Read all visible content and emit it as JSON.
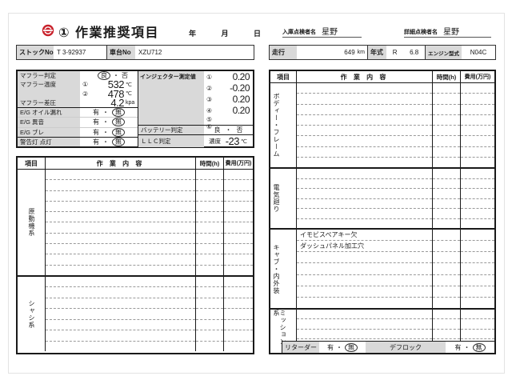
{
  "colors": {
    "label_bg": "#d9d9d9",
    "stamp_red": "#c8202a",
    "table_border": "#1a1a1a",
    "dash": "#9a9a9a"
  },
  "header": {
    "title": "① 作業推奨項目",
    "date_year": "年",
    "date_month": "月",
    "date_day": "日",
    "inspector_in_label": "入庫点検者名",
    "inspector_in_name": "星野",
    "inspector_detail_label": "詳細点検者名",
    "inspector_detail_name": "星野"
  },
  "info": {
    "stock_label": "ストックNo",
    "stock_value": "T 3-92937",
    "chassis_label": "車台No",
    "chassis_value": "XZU712",
    "mileage_label": "走行",
    "mileage_value": "649",
    "mileage_unit": "km",
    "year_label": "年式",
    "year_era": "R",
    "year_value": "6.8",
    "engine_label": "エンジン型式",
    "engine_value": "N04C"
  },
  "check": {
    "muffler_judge_label": "マフラー判定",
    "good": "良",
    "bad": "否",
    "sep": "・",
    "temp_label": "マフラー温度",
    "temp1_mark": "①",
    "temp1_value": "532",
    "temp1_unit": "℃",
    "temp2_mark": "②",
    "temp2_value": "478",
    "temp2_unit": "℃",
    "diff_label": "マフラー差圧",
    "diff_value": "4.2",
    "diff_unit": "kpa",
    "eg_oil": "E/G オイル漏れ",
    "eg_noise": "E/G 異音",
    "eg_shake": "E/G ブレ",
    "warning": "警告灯 点灯",
    "has": "有",
    "none": "無",
    "injector_label": "インジェクター測定値",
    "inj": [
      {
        "mark": "①",
        "value": "0.20"
      },
      {
        "mark": "②",
        "value": "-0.20"
      },
      {
        "mark": "③",
        "value": "0.20"
      },
      {
        "mark": "④",
        "value": "0.20"
      },
      {
        "mark": "⑤",
        "value": ""
      },
      {
        "mark": "⑥",
        "value": ""
      }
    ],
    "battery_label": "バッテリー判定",
    "llc_label": "ＬＬＣ判定",
    "llc_sub": "濃度",
    "llc_value": "-23",
    "llc_unit": "℃"
  },
  "work": {
    "headers": {
      "item": "項目",
      "work": "作 業 内 容",
      "time": "時間(h)",
      "cost": "費用(万円)"
    },
    "left_sections": [
      {
        "label": "原動機系",
        "entries": []
      },
      {
        "label": "シャシ系",
        "entries": []
      }
    ],
    "right_sections": [
      {
        "label": "ボディー・フレーム",
        "entries": []
      },
      {
        "label": "電気廻り",
        "entries": []
      },
      {
        "label": "キャブ・内外装",
        "entries": [
          "イモビスペアキー欠",
          "ダッシュパネル加工穴"
        ]
      },
      {
        "label": "ミッション系",
        "entries": []
      }
    ]
  },
  "footer": {
    "retarder_label": "リターダー",
    "deflock_label": "デフロック",
    "has": "有",
    "none": "無",
    "sep": "・"
  }
}
